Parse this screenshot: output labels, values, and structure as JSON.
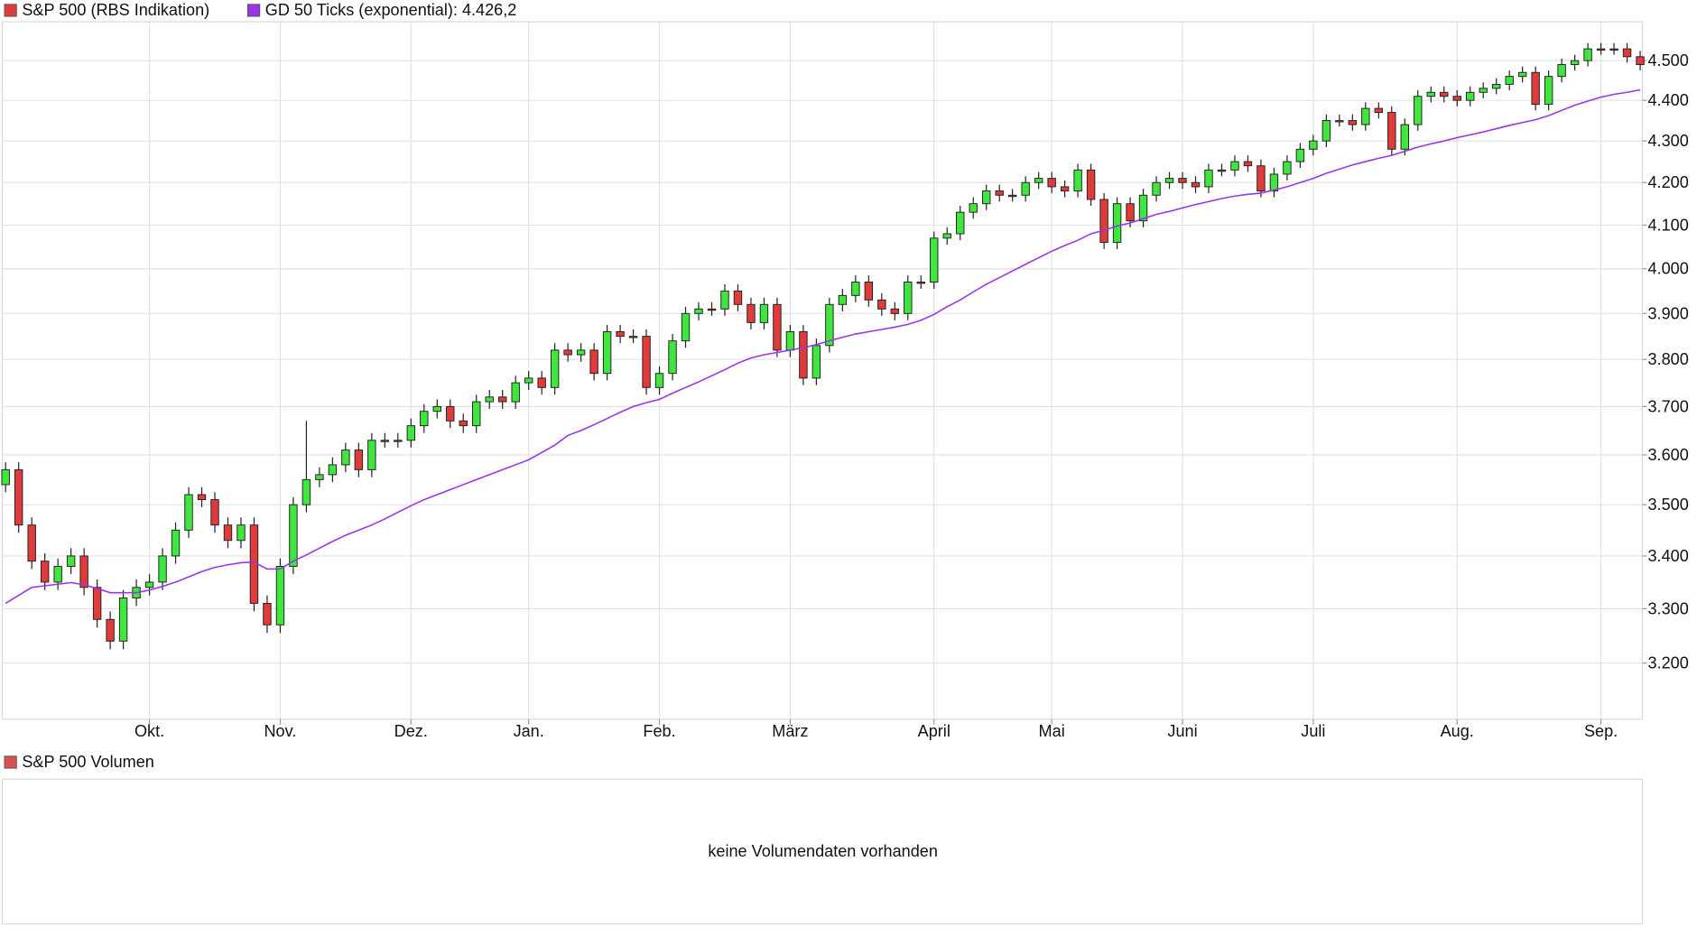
{
  "chart_data": {
    "type": "candlestick",
    "log": true,
    "grid": true,
    "ylim": [
      3100,
      4600
    ],
    "yticks": [
      {
        "value": 3200,
        "label": "3.200"
      },
      {
        "value": 3300,
        "label": "3.300"
      },
      {
        "value": 3400,
        "label": "3.400"
      },
      {
        "value": 3500,
        "label": "3.500"
      },
      {
        "value": 3600,
        "label": "3.600"
      },
      {
        "value": 3700,
        "label": "3.700"
      },
      {
        "value": 3800,
        "label": "3.800"
      },
      {
        "value": 3900,
        "label": "3.900"
      },
      {
        "value": 4000,
        "label": "4.000"
      },
      {
        "value": 4100,
        "label": "4.100"
      },
      {
        "value": 4200,
        "label": "4.200"
      },
      {
        "value": 4300,
        "label": "4.300"
      },
      {
        "value": 4400,
        "label": "4.400"
      },
      {
        "value": 4500,
        "label": "4.500"
      }
    ],
    "categories": [
      null,
      null,
      null,
      null,
      null,
      null,
      null,
      null,
      null,
      null,
      null,
      "Okt.",
      null,
      null,
      null,
      null,
      null,
      null,
      null,
      null,
      null,
      "Nov.",
      null,
      null,
      null,
      null,
      null,
      null,
      null,
      null,
      null,
      "Dez.",
      null,
      null,
      null,
      null,
      null,
      null,
      null,
      null,
      "Jan.",
      null,
      null,
      null,
      null,
      null,
      null,
      null,
      null,
      null,
      "Feb.",
      null,
      null,
      null,
      null,
      null,
      null,
      null,
      null,
      null,
      "März",
      null,
      null,
      null,
      null,
      null,
      null,
      null,
      null,
      null,
      null,
      "April",
      null,
      null,
      null,
      null,
      null,
      null,
      null,
      null,
      "Mai",
      null,
      null,
      null,
      null,
      null,
      null,
      null,
      null,
      null,
      "Juni",
      null,
      null,
      null,
      null,
      null,
      null,
      null,
      null,
      null,
      "Juli",
      null,
      null,
      null,
      null,
      null,
      null,
      null,
      null,
      null,
      null,
      "Aug.",
      null,
      null,
      null,
      null,
      null,
      null,
      null,
      null,
      null,
      null,
      "Sep.",
      null,
      null,
      null
    ],
    "series": [
      {
        "name": "S&P 500 (RBS Indikation)",
        "color": "#e03a3a",
        "up_color": "#3ee63e",
        "down_color": "#e03a3a",
        "open": [
          3540,
          3570,
          3460,
          3390,
          3350,
          3380,
          3400,
          3340,
          3280,
          3240,
          3320,
          3340,
          3350,
          3400,
          3450,
          3520,
          3510,
          3460,
          3430,
          3460,
          3310,
          3270,
          3380,
          3500,
          3550,
          3560,
          3580,
          3610,
          3570,
          3630,
          3630,
          3630,
          3660,
          3690,
          3700,
          3670,
          3660,
          3710,
          3720,
          3710,
          3750,
          3760,
          3740,
          3820,
          3810,
          3820,
          3770,
          3860,
          3850,
          3850,
          3740,
          3770,
          3840,
          3900,
          3910,
          3910,
          3950,
          3920,
          3880,
          3920,
          3820,
          3860,
          3760,
          3830,
          3920,
          3940,
          3970,
          3930,
          3910,
          3900,
          3970,
          3970,
          4070,
          4080,
          4130,
          4150,
          4180,
          4170,
          4170,
          4200,
          4210,
          4190,
          4180,
          4230,
          4160,
          4060,
          4150,
          4110,
          4170,
          4200,
          4210,
          4200,
          4190,
          4230,
          4230,
          4250,
          4240,
          4180,
          4220,
          4250,
          4280,
          4300,
          4350,
          4350,
          4340,
          4380,
          4370,
          4280,
          4340,
          4410,
          4420,
          4410,
          4400,
          4420,
          4430,
          4440,
          4460,
          4470,
          4390,
          4460,
          4490,
          4500,
          4530,
          4530,
          4530,
          4510
        ],
        "high": [
          3585,
          3585,
          3475,
          3405,
          3395,
          3415,
          3415,
          3355,
          3295,
          3335,
          3355,
          3365,
          3415,
          3465,
          3535,
          3535,
          3525,
          3475,
          3475,
          3475,
          3325,
          3395,
          3515,
          3670,
          3575,
          3595,
          3625,
          3625,
          3645,
          3645,
          3645,
          3675,
          3705,
          3715,
          3715,
          3685,
          3725,
          3735,
          3735,
          3765,
          3775,
          3775,
          3835,
          3835,
          3835,
          3835,
          3875,
          3875,
          3865,
          3865,
          3785,
          3855,
          3915,
          3925,
          3925,
          3965,
          3965,
          3935,
          3935,
          3935,
          3875,
          3875,
          3845,
          3935,
          3955,
          3985,
          3985,
          3945,
          3925,
          3985,
          3985,
          4085,
          4095,
          4145,
          4165,
          4195,
          4195,
          4185,
          4215,
          4225,
          4225,
          4205,
          4245,
          4245,
          4175,
          4165,
          4165,
          4185,
          4215,
          4225,
          4225,
          4215,
          4245,
          4245,
          4265,
          4265,
          4255,
          4235,
          4265,
          4295,
          4315,
          4365,
          4365,
          4365,
          4395,
          4395,
          4385,
          4355,
          4425,
          4435,
          4435,
          4425,
          4435,
          4445,
          4455,
          4475,
          4485,
          4485,
          4475,
          4505,
          4515,
          4545,
          4545,
          4545,
          4545,
          4525
        ],
        "low": [
          3525,
          3445,
          3375,
          3335,
          3335,
          3365,
          3325,
          3265,
          3225,
          3225,
          3305,
          3325,
          3335,
          3385,
          3435,
          3495,
          3445,
          3415,
          3415,
          3295,
          3255,
          3255,
          3365,
          3485,
          3535,
          3545,
          3565,
          3555,
          3555,
          3615,
          3615,
          3615,
          3645,
          3675,
          3655,
          3645,
          3645,
          3695,
          3695,
          3695,
          3735,
          3725,
          3725,
          3795,
          3795,
          3755,
          3755,
          3835,
          3835,
          3725,
          3725,
          3755,
          3825,
          3885,
          3895,
          3895,
          3905,
          3865,
          3865,
          3805,
          3805,
          3745,
          3745,
          3815,
          3905,
          3925,
          3915,
          3895,
          3885,
          3885,
          3955,
          3955,
          4055,
          4065,
          4115,
          4135,
          4155,
          4155,
          4155,
          4185,
          4175,
          4165,
          4165,
          4145,
          4045,
          4045,
          4095,
          4095,
          4155,
          4185,
          4185,
          4175,
          4175,
          4215,
          4215,
          4225,
          4165,
          4165,
          4205,
          4235,
          4265,
          4285,
          4335,
          4325,
          4325,
          4355,
          4265,
          4265,
          4325,
          4395,
          4395,
          4385,
          4385,
          4405,
          4415,
          4425,
          4445,
          4375,
          4375,
          4445,
          4475,
          4485,
          4515,
          4515,
          4495,
          4475
        ],
        "close": [
          3570,
          3460,
          3390,
          3350,
          3380,
          3400,
          3340,
          3280,
          3240,
          3320,
          3340,
          3350,
          3400,
          3450,
          3520,
          3510,
          3460,
          3430,
          3460,
          3310,
          3270,
          3380,
          3500,
          3550,
          3560,
          3580,
          3610,
          3570,
          3630,
          3630,
          3630,
          3660,
          3690,
          3700,
          3670,
          3660,
          3710,
          3720,
          3710,
          3750,
          3760,
          3740,
          3820,
          3810,
          3820,
          3770,
          3860,
          3850,
          3850,
          3740,
          3770,
          3840,
          3900,
          3910,
          3910,
          3950,
          3920,
          3880,
          3920,
          3820,
          3860,
          3760,
          3830,
          3920,
          3940,
          3970,
          3930,
          3910,
          3900,
          3970,
          3970,
          4070,
          4080,
          4130,
          4150,
          4180,
          4170,
          4170,
          4200,
          4210,
          4190,
          4180,
          4230,
          4160,
          4060,
          4150,
          4110,
          4170,
          4200,
          4210,
          4200,
          4190,
          4230,
          4230,
          4250,
          4240,
          4180,
          4220,
          4250,
          4280,
          4300,
          4350,
          4350,
          4340,
          4380,
          4370,
          4280,
          4340,
          4410,
          4420,
          4410,
          4400,
          4420,
          4430,
          4440,
          4460,
          4470,
          4390,
          4460,
          4490,
          4500,
          4530,
          4530,
          4530,
          4510,
          4490
        ]
      },
      {
        "name": "GD 50 Ticks (exponential): 4.426,2",
        "color": "#9933ee",
        "type": "line",
        "values": [
          3310,
          3325,
          3340,
          3343,
          3346,
          3349,
          3345,
          3338,
          3330,
          3330,
          3330,
          3335,
          3342,
          3350,
          3360,
          3370,
          3378,
          3383,
          3387,
          3388,
          3375,
          3375,
          3390,
          3402,
          3415,
          3428,
          3440,
          3450,
          3460,
          3472,
          3485,
          3498,
          3510,
          3520,
          3530,
          3540,
          3550,
          3560,
          3570,
          3580,
          3590,
          3605,
          3620,
          3640,
          3650,
          3662,
          3675,
          3688,
          3700,
          3708,
          3715,
          3728,
          3740,
          3752,
          3765,
          3778,
          3792,
          3803,
          3810,
          3815,
          3820,
          3825,
          3832,
          3840,
          3848,
          3855,
          3860,
          3865,
          3870,
          3876,
          3885,
          3898,
          3915,
          3930,
          3948,
          3965,
          3980,
          3995,
          4010,
          4025,
          4040,
          4053,
          4065,
          4080,
          4088,
          4098,
          4105,
          4115,
          4125,
          4132,
          4140,
          4148,
          4155,
          4162,
          4168,
          4172,
          4175,
          4182,
          4190,
          4200,
          4210,
          4222,
          4232,
          4242,
          4250,
          4258,
          4265,
          4275,
          4285,
          4293,
          4300,
          4308,
          4315,
          4322,
          4330,
          4338,
          4345,
          4352,
          4362,
          4375,
          4388,
          4398,
          4408,
          4415,
          4420,
          4426.2
        ]
      }
    ]
  },
  "volume_panel": {
    "title": "S&P 500 Volumen",
    "color": "#d95050",
    "message": "keine Volumendaten vorhanden"
  }
}
